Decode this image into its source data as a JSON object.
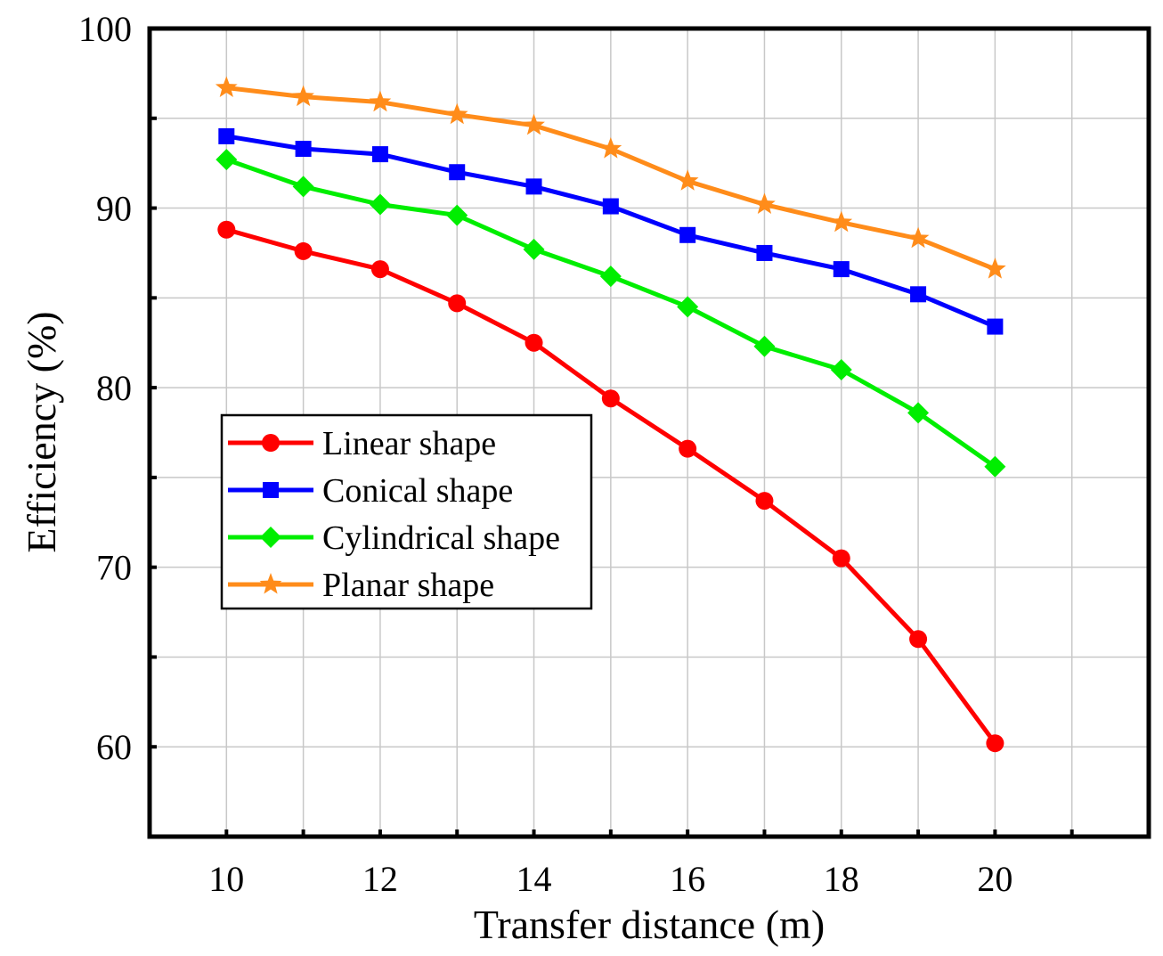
{
  "chart_data": {
    "type": "line",
    "title": "",
    "xlabel": "Transfer distance (m)",
    "ylabel": "Efficiency (%)",
    "xlim": [
      9,
      22
    ],
    "ylim": [
      55,
      100
    ],
    "x_ticks": [
      10,
      12,
      14,
      16,
      18,
      20
    ],
    "y_ticks": [
      60,
      70,
      80,
      90,
      100
    ],
    "grid": true,
    "legend_position": "center-left",
    "x": [
      10,
      11,
      12,
      13,
      14,
      15,
      16,
      17,
      18,
      19,
      20
    ],
    "series": [
      {
        "name": "Linear shape",
        "color": "#ff0000",
        "marker": "circle",
        "values": [
          88.8,
          87.6,
          86.6,
          84.7,
          82.5,
          79.4,
          76.6,
          73.7,
          70.5,
          66.0,
          60.2
        ]
      },
      {
        "name": "Conical shape",
        "color": "#0000ff",
        "marker": "square",
        "values": [
          94.0,
          93.3,
          93.0,
          92.0,
          91.2,
          90.1,
          88.5,
          87.5,
          86.6,
          85.2,
          83.4
        ]
      },
      {
        "name": "Cylindrical shape",
        "color": "#00ee00",
        "marker": "diamond",
        "values": [
          92.7,
          91.2,
          90.2,
          89.6,
          87.7,
          86.2,
          84.5,
          82.3,
          81.0,
          78.6,
          75.6
        ]
      },
      {
        "name": "Planar shape",
        "color": "#ff8c1a",
        "marker": "star",
        "values": [
          96.7,
          96.2,
          95.9,
          95.2,
          94.6,
          93.3,
          91.5,
          90.2,
          89.2,
          88.3,
          86.6
        ]
      }
    ]
  }
}
